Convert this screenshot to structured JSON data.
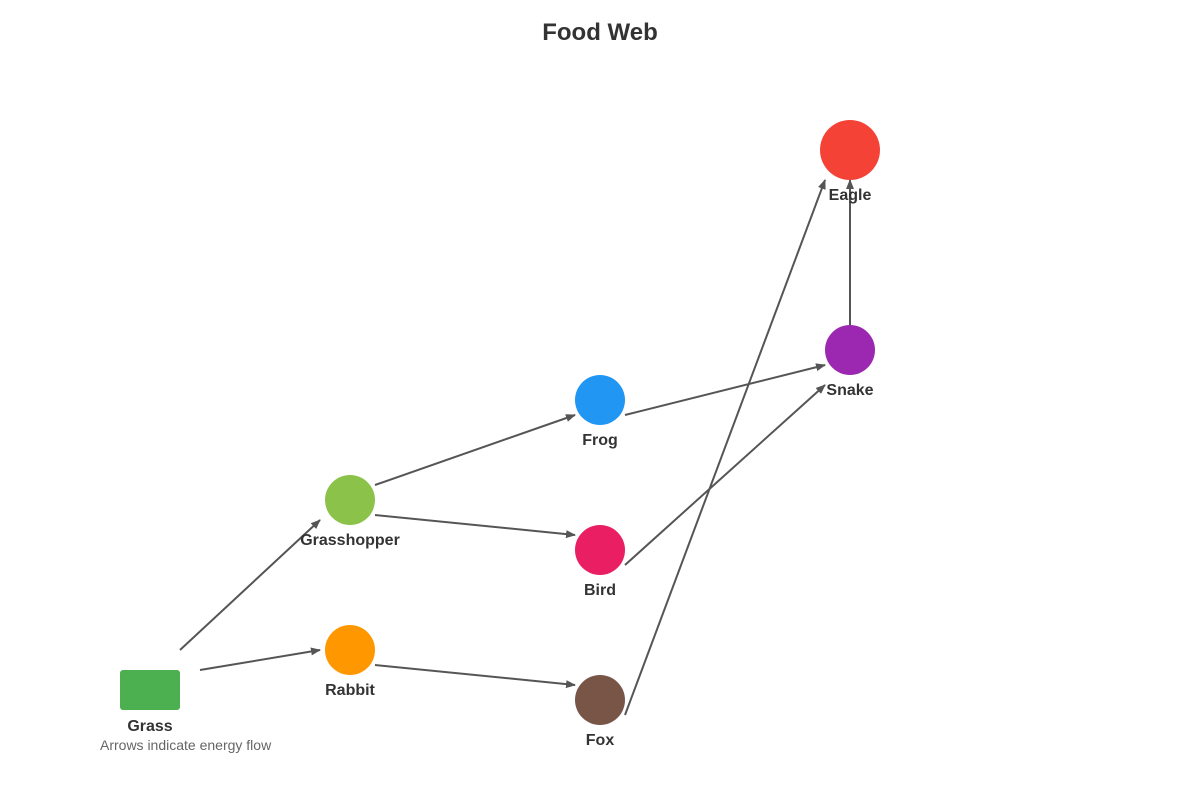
{
  "title": "Food Web",
  "caption": "Arrows indicate energy flow",
  "edge_color": "#555555",
  "nodes": [
    {
      "id": "grass",
      "label": "Grass",
      "shape": "rectangle",
      "color": "#4caf50"
    },
    {
      "id": "grasshopper",
      "label": "Grasshopper",
      "shape": "circle",
      "color": "#8bc34a"
    },
    {
      "id": "rabbit",
      "label": "Rabbit",
      "shape": "circle",
      "color": "#ff9800"
    },
    {
      "id": "frog",
      "label": "Frog",
      "shape": "circle",
      "color": "#2196f3"
    },
    {
      "id": "bird",
      "label": "Bird",
      "shape": "circle",
      "color": "#e91e63"
    },
    {
      "id": "fox",
      "label": "Fox",
      "shape": "circle",
      "color": "#795548"
    },
    {
      "id": "snake",
      "label": "Snake",
      "shape": "circle",
      "color": "#9c27b0"
    },
    {
      "id": "eagle",
      "label": "Eagle",
      "shape": "circle",
      "color": "#f44336"
    }
  ],
  "edges": [
    {
      "from": "grass",
      "to": "grasshopper"
    },
    {
      "from": "grass",
      "to": "rabbit"
    },
    {
      "from": "grasshopper",
      "to": "frog"
    },
    {
      "from": "grasshopper",
      "to": "bird"
    },
    {
      "from": "rabbit",
      "to": "fox"
    },
    {
      "from": "frog",
      "to": "snake"
    },
    {
      "from": "bird",
      "to": "snake"
    },
    {
      "from": "fox",
      "to": "eagle"
    },
    {
      "from": "snake",
      "to": "eagle"
    }
  ]
}
